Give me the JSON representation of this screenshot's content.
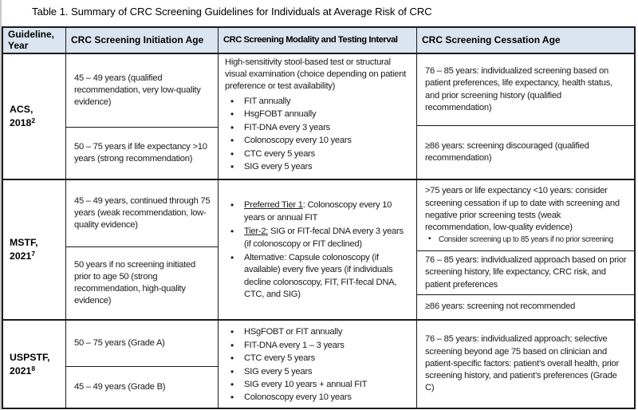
{
  "title": "Table 1. Summary of CRC Screening Guidelines for Individuals at Average Risk of CRC",
  "colors": {
    "header_bg": "#dbe5f1",
    "border": "#1b1b1b",
    "text": "#1a1a1a"
  },
  "table": {
    "headers": [
      "Guideline, Year",
      "CRC Screening Initiation Age",
      "CRC Screening Modality and Testing Interval",
      "CRC Screening Cessation Age"
    ],
    "rows": [
      {
        "guideline": "ACS,",
        "year": "2018",
        "ref": "2",
        "initiation": [
          "45 – 49 years (qualified recommendation, very low-quality evidence)",
          "50 – 75 years if life expectancy >10 years (strong recommendation)"
        ],
        "modality_intro": "High-sensitivity stool-based test or structural visual examination (choice depending on patient preference or test availability)",
        "modality_bullets": [
          "FIT annually",
          "HsgFOBT annually",
          "FIT-DNA every 3 years",
          "Colonoscopy every 10 years",
          "CTC every 5 years",
          "SIG every 5 years"
        ],
        "cessation": [
          {
            "text": "76 – 85 years: individualized screening based on patient preferences, life expectancy, health status, and prior screening history (qualified recommendation)"
          },
          {
            "text": "≥86 years: screening discouraged (qualified recommendation)"
          }
        ]
      },
      {
        "guideline": "MSTF,",
        "year": "2021",
        "ref": "7",
        "initiation": [
          "45 – 49 years, continued through 75 years (weak recommendation, low-quality evidence)",
          "50 years if no screening initiated prior to age 50 (strong recommendation, high-quality evidence)"
        ],
        "modality_tiers": [
          {
            "u": "Preferred Tier 1",
            "t": ": Colonoscopy every 10 years or annual FIT"
          },
          {
            "u": "Tier-2:",
            "t": " SIG or FIT-fecal DNA every 3 years (if colonoscopy or FIT declined)"
          },
          {
            "u": "",
            "t": "Alternative: Capsule colonoscopy (if available) every five years (if individuals decline colonoscopy, FIT, FIT-fecal DNA, CTC, and SIG)"
          }
        ],
        "cessation": [
          {
            "text": ">75 years or life expectancy <10 years: consider screening cessation if up to date with screening and negative prior screening tests (weak recommendation, low-quality evidence)",
            "bullet": "Consider screening up to 85 years if no prior screening"
          },
          {
            "text": "76 – 85 years: individualized approach based on prior screening history, life expectancy, CRC risk, and patient preferences"
          },
          {
            "text": "≥86 years: screening not recommended"
          }
        ]
      },
      {
        "guideline": "USPSTF,",
        "year": "2021",
        "ref": "8",
        "initiation": [
          "50 – 75 years (Grade A)",
          "45 – 49 years (Grade B)"
        ],
        "modality_bullets": [
          "HSgFOBT or FIT annually",
          "FIT-DNA every 1 – 3 years",
          "CTC every 5 years",
          "SIG every 5 years",
          "SIG every 10 years + annual FIT",
          "Colonoscopy every 10 years"
        ],
        "cessation": [
          {
            "text": "76 – 85 years: individualized approach; selective screening beyond age 75 based on clinician and patient-specific factors: patient’s overall health, prior screening history, and patient’s preferences (Grade C)"
          }
        ]
      }
    ]
  }
}
